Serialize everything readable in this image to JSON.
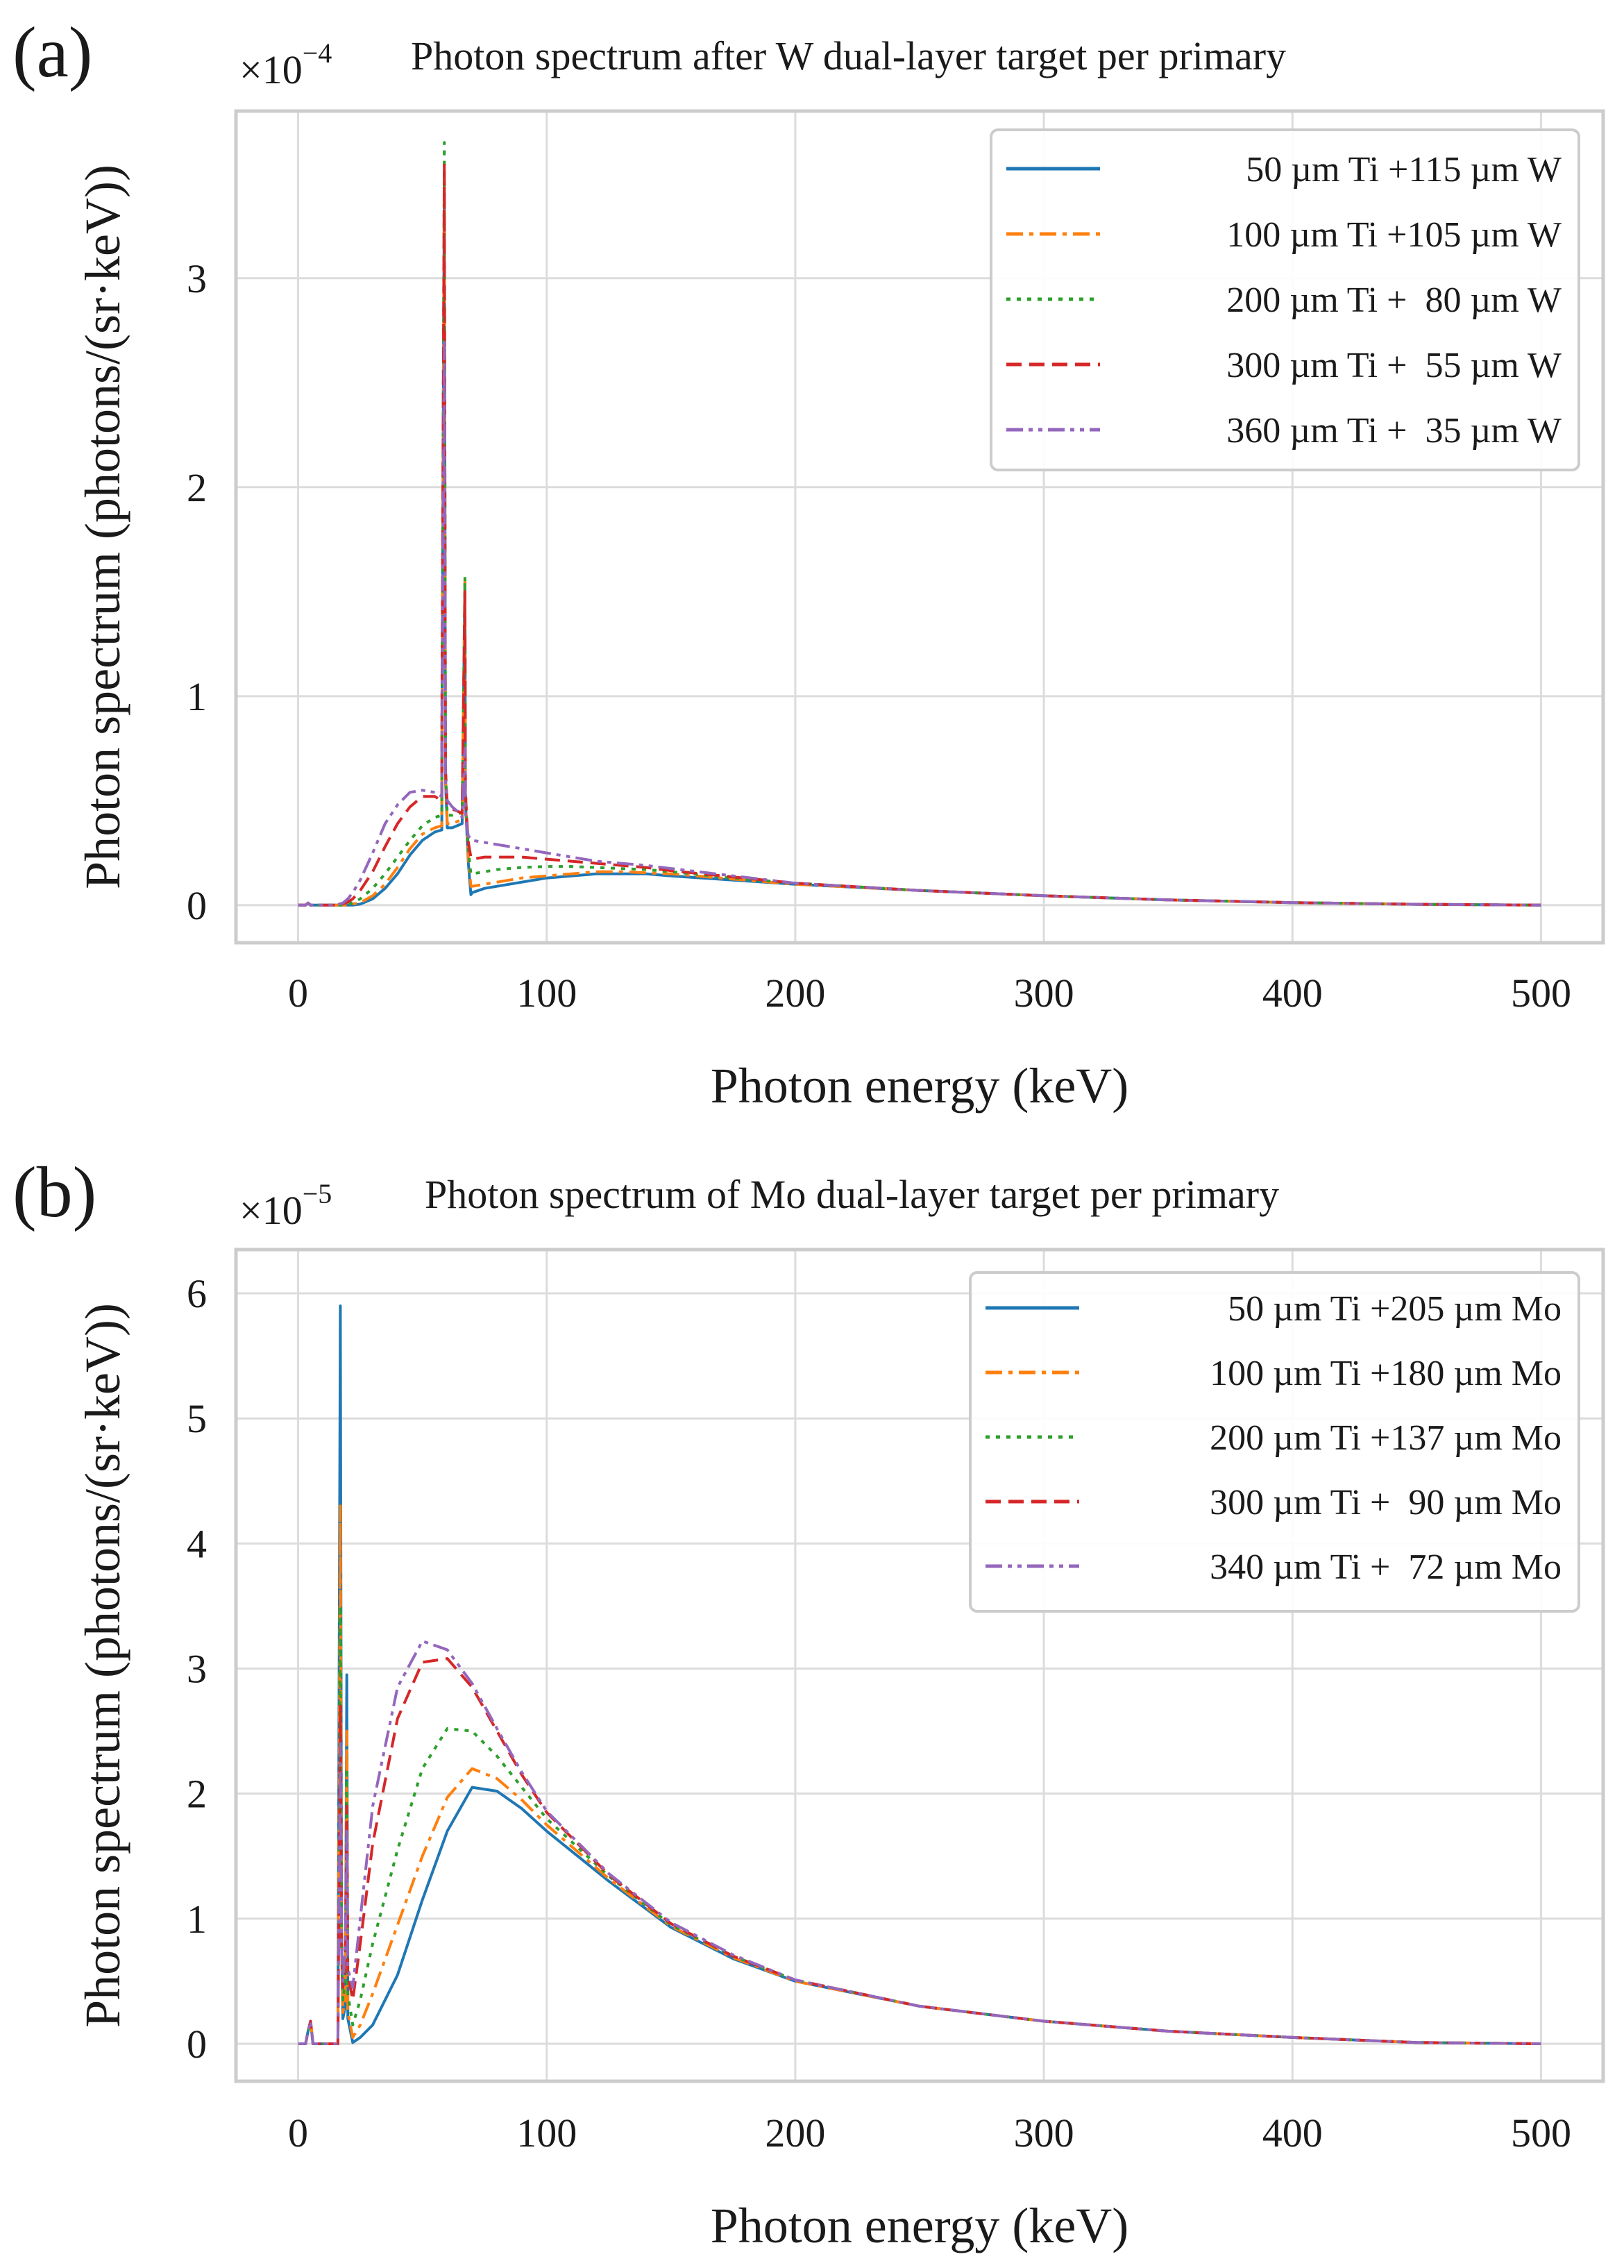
{
  "chart_data": [
    {
      "type": "line",
      "panel": "(a)",
      "title": "Photon spectrum after W dual-layer target per primary",
      "multiplier": {
        "base": "×10",
        "exponent": "−4"
      },
      "xlabel": "Photon energy (keV)",
      "ylabel": "Photon spectrum (photons/(sr·keV))",
      "xlim": [
        -25,
        525
      ],
      "ylim": [
        -0.18,
        3.8
      ],
      "xticks": [
        0,
        100,
        200,
        300,
        400,
        500
      ],
      "xtick_labels": [
        "0",
        "100",
        "200",
        "300",
        "400",
        "500"
      ],
      "yticks": [
        0,
        1,
        2,
        3
      ],
      "ytick_labels": [
        "0",
        "1",
        "2",
        "3"
      ],
      "grid": true,
      "legend_position": "top-right",
      "series": [
        {
          "name": " 50 µm Ti +115 µm W",
          "color": "#1f77b4",
          "dash": "solid",
          "x": [
            0,
            3,
            4,
            5,
            18,
            20,
            22,
            25,
            30,
            35,
            40,
            45,
            50,
            55,
            57.8,
            57.9,
            58.8,
            59.3,
            60,
            62,
            64,
            66,
            67.1,
            67.3,
            67.8,
            68.5,
            69.5,
            70,
            75,
            80,
            90,
            100,
            110,
            120,
            130,
            140,
            150,
            175,
            200,
            250,
            300,
            350,
            400,
            450,
            500
          ],
          "y": [
            0,
            0,
            0.01,
            0,
            0,
            0,
            0,
            0.005,
            0.03,
            0.08,
            0.15,
            0.24,
            0.31,
            0.35,
            0.36,
            0.9,
            3.45,
            0.6,
            0.37,
            0.37,
            0.38,
            0.39,
            1.55,
            0.5,
            0.37,
            0.2,
            0.05,
            0.06,
            0.08,
            0.09,
            0.11,
            0.13,
            0.14,
            0.15,
            0.15,
            0.15,
            0.14,
            0.12,
            0.1,
            0.07,
            0.045,
            0.025,
            0.012,
            0.004,
            0.0
          ]
        },
        {
          "name": "100 µm Ti +105 µm W",
          "color": "#ff7f0e",
          "dash": "dashdot",
          "x": [
            0,
            3,
            4,
            5,
            18,
            20,
            22,
            25,
            30,
            35,
            40,
            45,
            50,
            55,
            57.8,
            57.9,
            58.8,
            59.3,
            60,
            62,
            64,
            66,
            67.1,
            67.3,
            67.8,
            68.5,
            69.5,
            70,
            75,
            80,
            90,
            100,
            110,
            120,
            130,
            140,
            150,
            175,
            200,
            250,
            300,
            350,
            400,
            450,
            500
          ],
          "y": [
            0,
            0,
            0.01,
            0,
            0,
            0,
            0.005,
            0.012,
            0.045,
            0.1,
            0.18,
            0.27,
            0.34,
            0.37,
            0.38,
            0.95,
            3.5,
            0.62,
            0.39,
            0.39,
            0.4,
            0.41,
            1.55,
            0.52,
            0.39,
            0.22,
            0.09,
            0.09,
            0.1,
            0.11,
            0.13,
            0.14,
            0.15,
            0.16,
            0.16,
            0.155,
            0.15,
            0.125,
            0.1,
            0.07,
            0.045,
            0.025,
            0.012,
            0.004,
            0.0
          ]
        },
        {
          "name": "200 µm Ti +  80 µm W",
          "color": "#2ca02c",
          "dash": "dotted",
          "x": [
            0,
            3,
            4,
            5,
            15,
            18,
            20,
            22,
            25,
            30,
            35,
            40,
            45,
            50,
            55,
            57.8,
            57.9,
            58.8,
            59.3,
            60,
            62,
            64,
            66,
            67.1,
            67.3,
            67.8,
            68.5,
            69.5,
            70,
            75,
            80,
            90,
            100,
            110,
            120,
            130,
            140,
            150,
            175,
            200,
            250,
            300,
            350,
            400,
            450,
            500
          ],
          "y": [
            0,
            0,
            0.01,
            0,
            0,
            0,
            0.005,
            0.012,
            0.03,
            0.08,
            0.15,
            0.23,
            0.31,
            0.38,
            0.42,
            0.43,
            1.0,
            3.65,
            0.65,
            0.43,
            0.43,
            0.44,
            0.44,
            1.57,
            0.55,
            0.42,
            0.26,
            0.15,
            0.15,
            0.16,
            0.17,
            0.18,
            0.185,
            0.185,
            0.18,
            0.175,
            0.17,
            0.16,
            0.13,
            0.105,
            0.07,
            0.045,
            0.025,
            0.012,
            0.004,
            0.0
          ]
        },
        {
          "name": "300 µm Ti +  55 µm W",
          "color": "#d62728",
          "dash": "dashed",
          "x": [
            0,
            3,
            4,
            5,
            15,
            18,
            20,
            22,
            25,
            30,
            35,
            40,
            45,
            50,
            55,
            57.8,
            57.9,
            58.8,
            59.3,
            60,
            62,
            64,
            66,
            67.1,
            67.3,
            67.8,
            68.5,
            69.5,
            70,
            75,
            80,
            90,
            100,
            110,
            120,
            130,
            140,
            150,
            175,
            200,
            250,
            300,
            350,
            400,
            450,
            500
          ],
          "y": [
            0,
            0,
            0.01,
            0,
            0,
            0.005,
            0.015,
            0.03,
            0.07,
            0.16,
            0.28,
            0.39,
            0.47,
            0.52,
            0.52,
            0.5,
            1.05,
            3.55,
            0.65,
            0.48,
            0.46,
            0.45,
            0.44,
            1.5,
            0.55,
            0.42,
            0.3,
            0.23,
            0.22,
            0.23,
            0.23,
            0.23,
            0.22,
            0.21,
            0.2,
            0.19,
            0.18,
            0.165,
            0.135,
            0.105,
            0.07,
            0.045,
            0.025,
            0.012,
            0.004,
            0.0
          ]
        },
        {
          "name": "360 µm Ti +  35 µm W",
          "color": "#9467bd",
          "dash": "dashdotdot",
          "x": [
            0,
            3,
            4,
            5,
            15,
            18,
            20,
            22,
            25,
            30,
            35,
            40,
            45,
            50,
            55,
            57.8,
            57.9,
            58.8,
            59.3,
            60,
            62,
            64,
            66,
            67.1,
            67.3,
            67.8,
            68.5,
            69.5,
            70,
            75,
            80,
            90,
            100,
            110,
            120,
            130,
            140,
            150,
            175,
            200,
            250,
            300,
            350,
            400,
            450,
            500
          ],
          "y": [
            0,
            0,
            0.01,
            0,
            0,
            0.01,
            0.03,
            0.06,
            0.12,
            0.25,
            0.39,
            0.48,
            0.54,
            0.55,
            0.54,
            0.52,
            0.9,
            2.7,
            0.6,
            0.5,
            0.47,
            0.45,
            0.42,
            0.75,
            0.45,
            0.38,
            0.33,
            0.32,
            0.31,
            0.3,
            0.29,
            0.27,
            0.25,
            0.23,
            0.21,
            0.2,
            0.19,
            0.175,
            0.14,
            0.105,
            0.07,
            0.045,
            0.025,
            0.012,
            0.004,
            0.0
          ]
        }
      ]
    },
    {
      "type": "line",
      "panel": "(b)",
      "title": "Photon spectrum of Mo dual-layer target per primary",
      "multiplier": {
        "base": "×10",
        "exponent": "−5"
      },
      "xlabel": "Photon energy (keV)",
      "ylabel": "Photon spectrum (photons/(sr·keV))",
      "xlim": [
        -25,
        525
      ],
      "ylim": [
        -0.3,
        6.35
      ],
      "xticks": [
        0,
        100,
        200,
        300,
        400,
        500
      ],
      "xtick_labels": [
        "0",
        "100",
        "200",
        "300",
        "400",
        "500"
      ],
      "yticks": [
        0,
        1,
        2,
        3,
        4,
        5,
        6
      ],
      "ytick_labels": [
        "0",
        "1",
        "2",
        "3",
        "4",
        "5",
        "6"
      ],
      "grid": true,
      "legend_position": "top-right",
      "series": [
        {
          "name": " 50 µm Ti +205 µm Mo",
          "color": "#1f77b4",
          "dash": "solid",
          "x": [
            0,
            3,
            4,
            5,
            6,
            12,
            16,
            17,
            17.5,
            18,
            19,
            19.6,
            20,
            22,
            25,
            30,
            40,
            50,
            60,
            70,
            80,
            90,
            100,
            125,
            150,
            175,
            200,
            250,
            300,
            350,
            400,
            450,
            500
          ],
          "y": [
            0,
            0,
            0.1,
            0.18,
            0,
            0,
            0,
            5.9,
            0.8,
            0.2,
            0.3,
            2.95,
            0.2,
            0.01,
            0.05,
            0.15,
            0.55,
            1.15,
            1.7,
            2.05,
            2.02,
            1.88,
            1.7,
            1.3,
            0.93,
            0.68,
            0.5,
            0.3,
            0.18,
            0.1,
            0.05,
            0.01,
            0.0
          ]
        },
        {
          "name": "100 µm Ti +180 µm Mo",
          "color": "#ff7f0e",
          "dash": "dashdot",
          "x": [
            0,
            3,
            4,
            5,
            6,
            12,
            16,
            17,
            17.5,
            18,
            19,
            19.6,
            20,
            22,
            25,
            30,
            40,
            50,
            60,
            70,
            80,
            90,
            100,
            125,
            150,
            175,
            200,
            250,
            300,
            350,
            400,
            450,
            500
          ],
          "y": [
            0,
            0,
            0.1,
            0.18,
            0,
            0,
            0,
            4.3,
            0.8,
            0.25,
            0.35,
            2.5,
            0.25,
            0.05,
            0.15,
            0.4,
            0.95,
            1.5,
            1.97,
            2.2,
            2.12,
            1.95,
            1.75,
            1.32,
            0.94,
            0.69,
            0.5,
            0.3,
            0.18,
            0.1,
            0.05,
            0.01,
            0.0
          ]
        },
        {
          "name": "200 µm Ti +137 µm Mo",
          "color": "#2ca02c",
          "dash": "dotted",
          "x": [
            0,
            3,
            4,
            5,
            6,
            12,
            16,
            17,
            17.5,
            18,
            19,
            19.6,
            20,
            22,
            25,
            30,
            40,
            50,
            60,
            70,
            80,
            90,
            100,
            125,
            150,
            175,
            200,
            250,
            300,
            350,
            400,
            450,
            500
          ],
          "y": [
            0,
            0,
            0.1,
            0.18,
            0,
            0,
            0,
            3.5,
            0.8,
            0.35,
            0.5,
            2.2,
            0.4,
            0.15,
            0.35,
            0.8,
            1.55,
            2.2,
            2.52,
            2.5,
            2.3,
            2.05,
            1.8,
            1.34,
            0.95,
            0.7,
            0.51,
            0.3,
            0.18,
            0.1,
            0.05,
            0.01,
            0.0
          ]
        },
        {
          "name": "300 µm Ti +  90 µm Mo",
          "color": "#d62728",
          "dash": "dashed",
          "x": [
            0,
            3,
            4,
            5,
            6,
            12,
            16,
            17,
            17.5,
            18,
            19,
            19.6,
            20,
            22,
            25,
            30,
            40,
            50,
            60,
            70,
            80,
            90,
            100,
            125,
            150,
            175,
            200,
            250,
            300,
            350,
            400,
            450,
            500
          ],
          "y": [
            0,
            0,
            0.1,
            0.18,
            0,
            0,
            0,
            2.7,
            0.8,
            0.45,
            0.7,
            1.9,
            0.55,
            0.35,
            0.8,
            1.6,
            2.6,
            3.05,
            3.08,
            2.85,
            2.5,
            2.15,
            1.85,
            1.35,
            0.96,
            0.7,
            0.51,
            0.3,
            0.18,
            0.1,
            0.05,
            0.01,
            0.0
          ]
        },
        {
          "name": "340 µm Ti +  72 µm Mo",
          "color": "#9467bd",
          "dash": "dashdotdot",
          "x": [
            0,
            3,
            4,
            5,
            6,
            12,
            16,
            17,
            17.5,
            18,
            19,
            19.6,
            20,
            22,
            25,
            30,
            40,
            50,
            60,
            70,
            80,
            90,
            100,
            125,
            150,
            175,
            200,
            250,
            300,
            350,
            400,
            450,
            500
          ],
          "y": [
            0,
            0,
            0.1,
            0.18,
            0,
            0,
            0,
            2.4,
            0.8,
            0.5,
            0.8,
            1.7,
            0.6,
            0.45,
            1.0,
            1.9,
            2.85,
            3.22,
            3.15,
            2.88,
            2.52,
            2.17,
            1.86,
            1.36,
            0.97,
            0.71,
            0.51,
            0.3,
            0.18,
            0.1,
            0.05,
            0.01,
            0.0
          ]
        }
      ]
    }
  ]
}
